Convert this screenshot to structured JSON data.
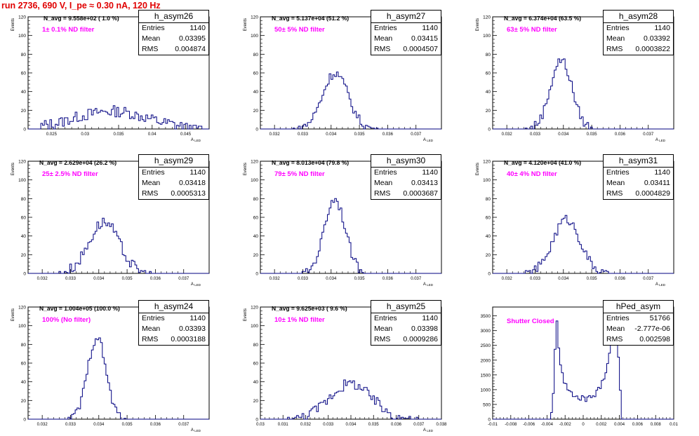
{
  "header": {
    "title": "run 2736,   690 V, I_pe ≈ 0.30 nA, 120 Hz"
  },
  "colors": {
    "histogram": "#000080",
    "title": "#e00000",
    "annotation": "#ff00ff",
    "axis": "#000000"
  },
  "chart_data": [
    {
      "type": "bar",
      "name": "h_asym26",
      "n_avg": "N_avg = 9.558e+02 ( 1.0 %)",
      "filter": "1± 0.1% ND filter",
      "stats": {
        "Entries": "1140",
        "Mean": "0.03395",
        "RMS": "0.004874"
      },
      "ylabel": "Events",
      "xlabel": "A_LED",
      "ylim": [
        0,
        120
      ],
      "xlim": [
        0.0215,
        0.0485
      ],
      "yticks": [
        "0",
        "20",
        "40",
        "60",
        "80",
        "100",
        "120"
      ],
      "xticks": [
        "0.025",
        "0.03",
        "0.035",
        "0.04",
        "0.045"
      ],
      "peak": {
        "center": 0.0339,
        "sigma": 0.0055,
        "height": 19,
        "noise": 6
      },
      "hist_x": [
        0.0235,
        0.0475
      ]
    },
    {
      "type": "bar",
      "name": "h_asym27",
      "n_avg": "N_avg = 5.137e+04 (51.2 %)",
      "filter": "50± 5% ND filter",
      "stats": {
        "Entries": "1140",
        "Mean": "0.03415",
        "RMS": "0.0004507"
      },
      "ylabel": "Events",
      "xlabel": "A_LED",
      "ylim": [
        0,
        120
      ],
      "xlim": [
        0.0315,
        0.0379
      ],
      "yticks": [
        "0",
        "20",
        "40",
        "60",
        "80",
        "100",
        "120"
      ],
      "xticks": [
        "0.032",
        "0.033",
        "0.034",
        "0.035",
        "0.036",
        "0.037"
      ],
      "peak": {
        "center": 0.03415,
        "sigma": 0.00045,
        "height": 60,
        "noise": 5
      },
      "hist_x": [
        0.0326,
        0.0357
      ]
    },
    {
      "type": "bar",
      "name": "h_asym28",
      "n_avg": "N_avg = 6.374e+04 (63.5 %)",
      "filter": "63± 5% ND filter",
      "stats": {
        "Entries": "1140",
        "Mean": "0.03392",
        "RMS": "0.0003822"
      },
      "ylabel": "Events",
      "xlabel": "A_LED",
      "ylim": [
        0,
        120
      ],
      "xlim": [
        0.0315,
        0.0379
      ],
      "yticks": [
        "0",
        "20",
        "40",
        "60",
        "80",
        "100",
        "120"
      ],
      "xticks": [
        "0.032",
        "0.033",
        "0.034",
        "0.035",
        "0.036",
        "0.037"
      ],
      "peak": {
        "center": 0.03392,
        "sigma": 0.00038,
        "height": 74,
        "noise": 5
      },
      "hist_x": [
        0.0326,
        0.0351
      ]
    },
    {
      "type": "bar",
      "name": "h_asym29",
      "n_avg": "N_avg = 2.629e+04 (26.2 %)",
      "filter": "25± 2.5% ND filter",
      "stats": {
        "Entries": "1140",
        "Mean": "0.03418",
        "RMS": "0.0005313"
      },
      "ylabel": "Events",
      "xlabel": "A_LED",
      "ylim": [
        0,
        120
      ],
      "xlim": [
        0.0315,
        0.0379
      ],
      "yticks": [
        "0",
        "20",
        "40",
        "60",
        "80",
        "100",
        "120"
      ],
      "xticks": [
        "0.032",
        "0.033",
        "0.034",
        "0.035",
        "0.036",
        "0.037"
      ],
      "peak": {
        "center": 0.03418,
        "sigma": 0.00053,
        "height": 55,
        "noise": 6
      },
      "hist_x": [
        0.0325,
        0.0359
      ]
    },
    {
      "type": "bar",
      "name": "h_asym30",
      "n_avg": "N_avg = 8.013e+04 (79.8 %)",
      "filter": "79± 5% ND filter",
      "stats": {
        "Entries": "1140",
        "Mean": "0.03413",
        "RMS": "0.0003687"
      },
      "ylabel": "Events",
      "xlabel": "A_LED",
      "ylim": [
        0,
        120
      ],
      "xlim": [
        0.0315,
        0.0379
      ],
      "yticks": [
        "0",
        "20",
        "40",
        "60",
        "80",
        "100",
        "120"
      ],
      "xticks": [
        "0.032",
        "0.033",
        "0.034",
        "0.035",
        "0.036",
        "0.037"
      ],
      "peak": {
        "center": 0.03413,
        "sigma": 0.00037,
        "height": 80,
        "noise": 5
      },
      "hist_x": [
        0.0329,
        0.0353
      ]
    },
    {
      "type": "bar",
      "name": "h_asym31",
      "n_avg": "N_avg = 4.120e+04 (41.0 %)",
      "filter": "40± 4% ND filter",
      "stats": {
        "Entries": "1140",
        "Mean": "0.03411",
        "RMS": "0.0004829"
      },
      "ylabel": "Events",
      "xlabel": "A_LED",
      "ylim": [
        0,
        120
      ],
      "xlim": [
        0.0315,
        0.0379
      ],
      "yticks": [
        "0",
        "20",
        "40",
        "60",
        "80",
        "100",
        "120"
      ],
      "xticks": [
        "0.032",
        "0.033",
        "0.034",
        "0.035",
        "0.036",
        "0.037"
      ],
      "peak": {
        "center": 0.03411,
        "sigma": 0.00048,
        "height": 58,
        "noise": 5
      },
      "hist_x": [
        0.0326,
        0.0357
      ]
    },
    {
      "type": "bar",
      "name": "h_asym24",
      "n_avg": "N_avg = 1.004e+05 (100.0 %)",
      "filter": "100% (No filter)",
      "stats": {
        "Entries": "1140",
        "Mean": "0.03393",
        "RMS": "0.0003188"
      },
      "ylabel": "Events",
      "xlabel": "A_LED",
      "ylim": [
        0,
        120
      ],
      "xlim": [
        0.0315,
        0.0379
      ],
      "yticks": [
        "0",
        "20",
        "40",
        "60",
        "80",
        "100",
        "120"
      ],
      "xticks": [
        "0.032",
        "0.033",
        "0.034",
        "0.035",
        "0.036",
        "0.037"
      ],
      "peak": {
        "center": 0.03393,
        "sigma": 0.00032,
        "height": 88,
        "noise": 5
      },
      "hist_x": [
        0.0329,
        0.035
      ]
    },
    {
      "type": "bar",
      "name": "h_asym25",
      "n_avg": "N_avg = 9.625e+03 ( 9.6 %)",
      "filter": "10± 1% ND filter",
      "stats": {
        "Entries": "1140",
        "Mean": "0.03398",
        "RMS": "0.0009286"
      },
      "ylabel": "Events",
      "xlabel": "A_LED",
      "ylim": [
        0,
        120
      ],
      "xlim": [
        0.03,
        0.038
      ],
      "yticks": [
        "0",
        "20",
        "40",
        "60",
        "80",
        "100",
        "120"
      ],
      "xticks": [
        "0.03",
        "0.031",
        "0.032",
        "0.033",
        "0.034",
        "0.035",
        "0.036",
        "0.037",
        "0.038"
      ],
      "peak": {
        "center": 0.03398,
        "sigma": 0.00093,
        "height": 38,
        "noise": 6
      },
      "hist_x": [
        0.0312,
        0.037
      ]
    },
    {
      "type": "bar",
      "name": "hPed_asym",
      "n_avg": "",
      "filter": "Shutter Closed",
      "stats": {
        "Entries": "51766",
        "Mean": "-2.777e-06",
        "RMS": "0.002598"
      },
      "ylabel": "",
      "xlabel": "",
      "ylim": [
        0,
        3800
      ],
      "xlim": [
        -0.01,
        0.01
      ],
      "yticks": [
        "0",
        "500",
        "1000",
        "1500",
        "2000",
        "2500",
        "3000",
        "3500"
      ],
      "xticks": [
        "-0.01",
        "-0.008",
        "-0.006",
        "-0.004",
        "-0.002",
        "0",
        "0.002",
        "0.004",
        "0.006",
        "0.008",
        "0.01"
      ],
      "bimodal": {
        "left": -0.0029,
        "right": 0.0036,
        "peak": 3350,
        "valley": 700
      },
      "hist_x": [
        -0.0036,
        0.0042
      ]
    }
  ]
}
